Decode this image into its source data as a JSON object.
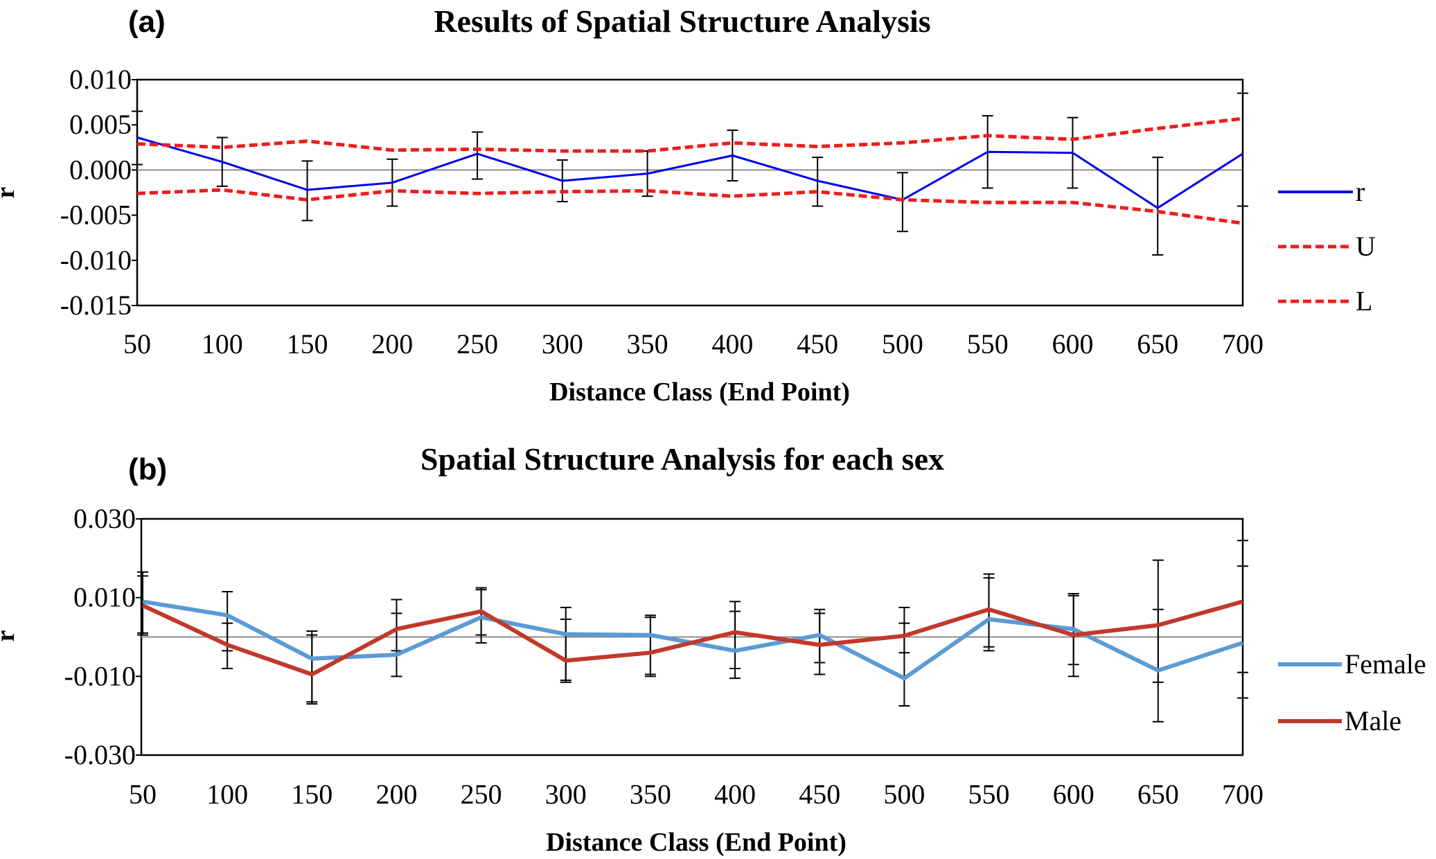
{
  "chart_data": [
    {
      "type": "line",
      "panel_label": "(a)",
      "title": "Results of Spatial Structure Analysis",
      "xlabel": "Distance Class (End Point)",
      "ylabel": "r",
      "x": [
        50,
        100,
        150,
        200,
        250,
        300,
        350,
        400,
        450,
        500,
        550,
        600,
        650,
        700
      ],
      "y_ticks": [
        "0.010",
        "0.005",
        "0.000",
        "-0.005",
        "-0.010",
        "-0.015"
      ],
      "ylim": [
        -0.015,
        0.01
      ],
      "grid": false,
      "zero_line": true,
      "legend_position": "right",
      "series": [
        {
          "name": "r",
          "color": "#0000ee",
          "style": "solid",
          "values": [
            0.0036,
            0.0009,
            -0.0022,
            -0.0014,
            0.0018,
            -0.0012,
            -0.0004,
            0.0016,
            -0.0012,
            -0.0033,
            0.002,
            0.0019,
            -0.0042,
            0.0018
          ],
          "error_upper": [
            0.0065,
            0.0036,
            0.001,
            0.0012,
            0.0042,
            0.0011,
            0.0021,
            0.0044,
            0.0014,
            -0.0003,
            0.006,
            0.0058,
            0.0014,
            0.0085
          ],
          "error_lower": [
            0.0006,
            -0.0018,
            -0.0056,
            -0.004,
            -0.001,
            -0.0035,
            -0.0029,
            -0.0012,
            -0.004,
            -0.0068,
            -0.002,
            -0.002,
            -0.0094,
            -0.004
          ]
        },
        {
          "name": "U",
          "color": "#ee1c1c",
          "style": "dashed",
          "values": [
            0.0029,
            0.0025,
            0.0032,
            0.0022,
            0.0023,
            0.0021,
            0.0021,
            0.003,
            0.0026,
            0.003,
            0.0038,
            0.0034,
            0.0046,
            0.0057
          ]
        },
        {
          "name": "L",
          "color": "#ee1c1c",
          "style": "dashed",
          "values": [
            -0.0026,
            -0.0022,
            -0.0033,
            -0.0023,
            -0.0026,
            -0.0024,
            -0.0023,
            -0.0029,
            -0.0024,
            -0.0033,
            -0.0036,
            -0.0036,
            -0.0046,
            -0.0059
          ]
        }
      ]
    },
    {
      "type": "line",
      "panel_label": "(b)",
      "title": "Spatial Structure Analysis for each sex",
      "xlabel": "Distance Class (End Point)",
      "ylabel": "r",
      "x": [
        50,
        100,
        150,
        200,
        250,
        300,
        350,
        400,
        450,
        500,
        550,
        600,
        650,
        700
      ],
      "y_ticks": [
        "0.030",
        "0.010",
        "-0.010",
        "-0.030"
      ],
      "ylim": [
        -0.03,
        0.03
      ],
      "grid": false,
      "zero_line": true,
      "legend_position": "right",
      "series": [
        {
          "name": "Female",
          "color": "#5b9bd5",
          "style": "solid",
          "values": [
            0.009,
            0.0055,
            -0.0055,
            -0.0045,
            0.005,
            0.0007,
            0.0005,
            -0.0035,
            0.0005,
            -0.0105,
            0.0045,
            0.002,
            -0.0085,
            -0.0015
          ],
          "error_upper": [
            0.0165,
            0.0115,
            0.0015,
            0.006,
            0.012,
            0.0075,
            0.0055,
            0.0065,
            0.007,
            0.0075,
            0.016,
            0.011,
            0.0195,
            0.0245
          ],
          "error_lower": [
            0.001,
            -0.0035,
            -0.0165,
            -0.01,
            -0.0015,
            -0.011,
            -0.01,
            -0.0105,
            -0.0065,
            -0.0175,
            -0.0025,
            -0.007,
            -0.0215,
            -0.0155
          ]
        },
        {
          "name": "Male",
          "color": "#c0392b",
          "style": "solid",
          "values": [
            0.008,
            -0.002,
            -0.0095,
            0.002,
            0.0065,
            -0.006,
            -0.004,
            0.0012,
            -0.002,
            0.0003,
            0.007,
            0.0005,
            0.003,
            0.009
          ],
          "error_upper": [
            0.0155,
            0.0035,
            0.0005,
            0.0095,
            0.0125,
            0.0045,
            0.005,
            0.009,
            0.006,
            0.0035,
            0.015,
            0.0105,
            0.007,
            0.018
          ],
          "error_lower": [
            0.0005,
            -0.008,
            -0.017,
            -0.0035,
            0.0005,
            -0.0115,
            -0.0095,
            -0.008,
            -0.0095,
            -0.004,
            -0.0035,
            -0.01,
            -0.0115,
            -0.009
          ]
        }
      ]
    }
  ]
}
